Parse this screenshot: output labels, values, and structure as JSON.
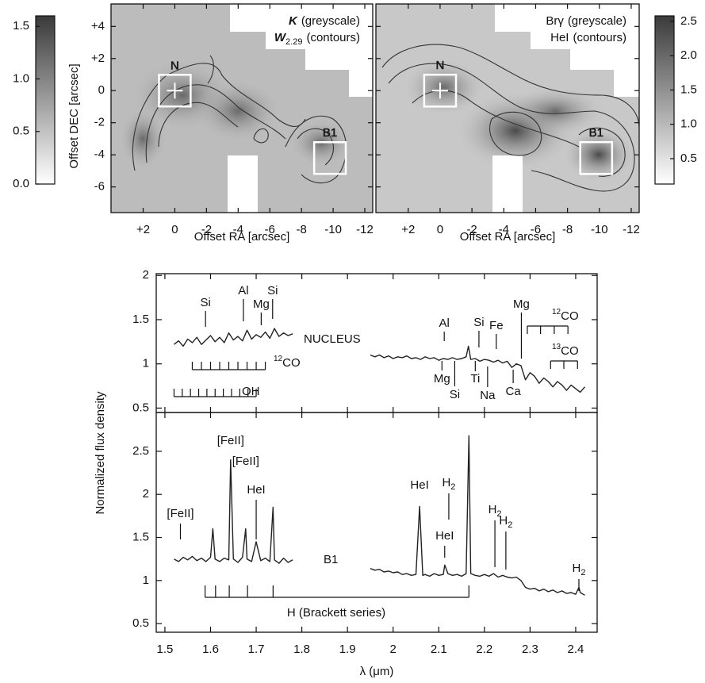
{
  "chart_data": [
    {
      "type": "map",
      "xlabel": "Offset RA [arcsec]",
      "ylabel": "Offset DEC [arcsec]",
      "xlim": [
        4.03,
        -12.5
      ],
      "ylim": [
        -7.6,
        5.4
      ],
      "xticks": [
        {
          "value": 2,
          "label": "+2"
        },
        0,
        -2,
        -4,
        -6,
        -8,
        -10,
        -12
      ],
      "yticks": [
        {
          "value": 4,
          "label": "+4"
        },
        {
          "value": 2,
          "label": "+2"
        },
        0,
        -2,
        -4,
        -6
      ],
      "labels": [
        {
          "label": "K",
          "rest": "(greyscale)"
        },
        {
          "label": "W",
          "sub": "2.29",
          "rest": "(contours)"
        }
      ],
      "regions": [
        {
          "label": "N",
          "x": 0,
          "y": 0
        },
        {
          "label": "B1",
          "x": -9.8,
          "y": -4.2
        }
      ],
      "colorbar": {
        "lim": [
          0,
          1.6
        ],
        "ticks": [
          {
            "value": 0,
            "label": "0.0"
          },
          0.5,
          {
            "value": 1,
            "label": "1.0"
          },
          1.5
        ]
      }
    },
    {
      "type": "map",
      "xlabel": "Offset RA [arcsec]",
      "xlim": [
        4.03,
        -12.5
      ],
      "ylim": [
        -7.6,
        5.4
      ],
      "xticks": [
        {
          "value": 2,
          "label": "+2"
        },
        0,
        -2,
        -4,
        -6,
        -8,
        -10,
        -12
      ],
      "labels": [
        {
          "label": "Brγ",
          "rest": "(greyscale)"
        },
        {
          "label": "HeI",
          "rest": "(contours)"
        }
      ],
      "regions": [
        {
          "label": "N",
          "x": 0,
          "y": 0
        },
        {
          "label": "B1",
          "x": -9.8,
          "y": -4.2
        }
      ],
      "colorbar": {
        "lim": [
          0.13,
          2.58
        ],
        "ticks": [
          0.5,
          {
            "value": 1,
            "label": "1.0"
          },
          1.5,
          {
            "value": 2,
            "label": "2.0"
          },
          2.5
        ]
      }
    },
    {
      "type": "spectrum",
      "label": "NUCLEUS",
      "xlim": [
        1.481,
        2.447
      ],
      "ylim": [
        0.45,
        2.02
      ],
      "yticks": [
        0.5,
        1,
        1.5,
        2
      ],
      "series": [
        {
          "color": "#222222",
          "x": [
            1.52,
            1.53,
            1.54,
            1.55,
            1.56,
            1.57,
            1.58,
            1.59,
            1.6,
            1.61,
            1.62,
            1.63,
            1.64,
            1.65,
            1.66,
            1.67,
            1.68,
            1.69,
            1.7,
            1.71,
            1.72,
            1.73,
            1.74,
            1.75,
            1.76,
            1.77,
            1.78
          ],
          "values": [
            1.22,
            1.26,
            1.2,
            1.28,
            1.24,
            1.3,
            1.22,
            1.27,
            1.32,
            1.25,
            1.3,
            1.24,
            1.35,
            1.27,
            1.31,
            1.26,
            1.38,
            1.28,
            1.33,
            1.3,
            1.36,
            1.29,
            1.4,
            1.31,
            1.35,
            1.32,
            1.34
          ]
        },
        {
          "color": "#222222",
          "x": [
            1.95,
            1.96,
            1.97,
            1.98,
            1.99,
            2.0,
            2.01,
            2.02,
            2.03,
            2.04,
            2.05,
            2.06,
            2.07,
            2.08,
            2.09,
            2.1,
            2.11,
            2.12,
            2.13,
            2.14,
            2.15,
            2.16,
            2.165,
            2.17,
            2.18,
            2.19,
            2.2,
            2.21,
            2.22,
            2.23,
            2.24,
            2.25,
            2.26,
            2.27,
            2.28,
            2.29,
            2.3,
            2.31,
            2.32,
            2.33,
            2.34,
            2.35,
            2.36,
            2.37,
            2.38,
            2.39,
            2.4,
            2.41,
            2.42
          ],
          "values": [
            1.1,
            1.08,
            1.1,
            1.07,
            1.09,
            1.06,
            1.08,
            1.07,
            1.09,
            1.06,
            1.07,
            1.05,
            1.08,
            1.06,
            1.07,
            1.04,
            1.06,
            1.05,
            1.07,
            1.05,
            1.06,
            1.08,
            1.2,
            1.05,
            1.06,
            1.03,
            1.05,
            1.04,
            1.02,
            1.04,
            1.01,
            1.03,
            0.96,
            1.0,
            0.98,
            0.82,
            0.9,
            0.86,
            0.78,
            0.84,
            0.8,
            0.74,
            0.8,
            0.76,
            0.7,
            0.76,
            0.72,
            0.68,
            0.74
          ]
        }
      ],
      "annotations": [
        {
          "label": "Si",
          "x": 1.589
        },
        {
          "label": "Al",
          "x": 1.672
        },
        {
          "label": "Mg",
          "x": 1.711
        },
        {
          "label": "Si",
          "x": 1.736
        },
        {
          "label": "Al",
          "x": 2.112
        },
        {
          "label": "Si",
          "x": 2.188
        },
        {
          "label": "Fe",
          "x": 2.226
        },
        {
          "label": "Mg",
          "x": 2.281
        },
        {
          "label": "Mg",
          "x": 2.107
        },
        {
          "label": "Si",
          "x": 2.135
        },
        {
          "label": "Ti",
          "x": 2.18
        },
        {
          "label": "Na",
          "x": 2.207
        },
        {
          "label": "Ca",
          "x": 2.263
        }
      ],
      "ladders": [
        {
          "sup": "12",
          "label": "CO",
          "ticks": [
            1.56,
            1.58,
            1.6,
            1.62,
            1.64,
            1.66,
            1.68,
            1.7,
            1.72
          ]
        },
        {
          "label": "OH",
          "ticks": [
            1.52,
            1.538,
            1.556,
            1.574,
            1.592,
            1.61,
            1.628,
            1.646,
            1.664,
            1.682,
            1.7
          ]
        },
        {
          "sup": "12",
          "label": "CO",
          "ticks": [
            2.294,
            2.323,
            2.353,
            2.383
          ]
        },
        {
          "sup": "13",
          "label": "CO",
          "ticks": [
            2.345,
            2.374,
            2.404
          ]
        }
      ]
    },
    {
      "type": "spectrum",
      "label": "B1",
      "xlabel": "λ (μm)",
      "ylabel": "Normalized flux density",
      "xlim": [
        1.481,
        2.447
      ],
      "ylim": [
        0.4,
        2.95
      ],
      "yticks": [
        0.5,
        1,
        1.5,
        2,
        2.5
      ],
      "xticks": [
        1.5,
        1.6,
        1.7,
        1.8,
        1.9,
        2,
        2.1,
        2.2,
        2.3,
        2.4
      ],
      "series": [
        {
          "color": "#222222",
          "x": [
            1.52,
            1.53,
            1.54,
            1.55,
            1.56,
            1.57,
            1.58,
            1.59,
            1.6,
            1.605,
            1.61,
            1.62,
            1.63,
            1.64,
            1.644,
            1.65,
            1.66,
            1.67,
            1.677,
            1.68,
            1.69,
            1.7,
            1.71,
            1.72,
            1.73,
            1.737,
            1.74,
            1.75,
            1.76,
            1.77,
            1.78
          ],
          "values": [
            1.25,
            1.22,
            1.27,
            1.24,
            1.28,
            1.23,
            1.26,
            1.22,
            1.27,
            1.6,
            1.25,
            1.22,
            1.26,
            1.24,
            2.4,
            1.25,
            1.21,
            1.27,
            1.6,
            1.25,
            1.22,
            1.45,
            1.23,
            1.26,
            1.22,
            1.85,
            1.24,
            1.2,
            1.26,
            1.21,
            1.24
          ]
        },
        {
          "color": "#222222",
          "x": [
            1.95,
            1.96,
            1.97,
            1.98,
            1.99,
            2.0,
            2.01,
            2.02,
            2.03,
            2.04,
            2.05,
            2.058,
            2.065,
            2.07,
            2.08,
            2.09,
            2.1,
            2.11,
            2.113,
            2.12,
            2.13,
            2.14,
            2.15,
            2.16,
            2.166,
            2.17,
            2.18,
            2.19,
            2.2,
            2.21,
            2.22,
            2.23,
            2.24,
            2.25,
            2.26,
            2.27,
            2.28,
            2.29,
            2.3,
            2.31,
            2.32,
            2.33,
            2.34,
            2.35,
            2.36,
            2.37,
            2.38,
            2.39,
            2.4,
            2.407,
            2.41,
            2.42
          ],
          "values": [
            1.14,
            1.12,
            1.13,
            1.1,
            1.11,
            1.09,
            1.1,
            1.07,
            1.08,
            1.06,
            1.07,
            1.86,
            1.06,
            1.07,
            1.05,
            1.08,
            1.06,
            1.07,
            1.18,
            1.08,
            1.06,
            1.07,
            1.05,
            1.08,
            2.68,
            1.08,
            1.06,
            1.05,
            1.07,
            1.05,
            1.08,
            1.04,
            1.06,
            1.04,
            1.03,
            1.04,
            1.0,
            0.92,
            0.9,
            0.91,
            0.88,
            0.9,
            0.87,
            0.89,
            0.86,
            0.88,
            0.85,
            0.86,
            0.84,
            0.92,
            0.86,
            0.83
          ]
        }
      ],
      "annotations": [
        {
          "label": "[FeII]",
          "x": 1.534
        },
        {
          "label": "[FeII]",
          "x": 1.644
        },
        {
          "label": "[FeII]",
          "x": 1.677
        },
        {
          "label": "HeI",
          "x": 1.7
        },
        {
          "label": "HeI",
          "x": 2.058
        },
        {
          "label": "H",
          "sub": "2",
          "x": 2.122
        },
        {
          "label": "HeI",
          "x": 2.113
        },
        {
          "label": "H",
          "sub": "2",
          "x": 2.223
        },
        {
          "label": "H",
          "sub": "2",
          "x": 2.247
        },
        {
          "label": "H",
          "sub": "2",
          "x": 2.407
        }
      ],
      "ladders": [
        {
          "label": "H (Brackett series)",
          "ticks": [
            1.588,
            1.611,
            1.641,
            1.681,
            1.737,
            2.166
          ]
        }
      ]
    }
  ]
}
